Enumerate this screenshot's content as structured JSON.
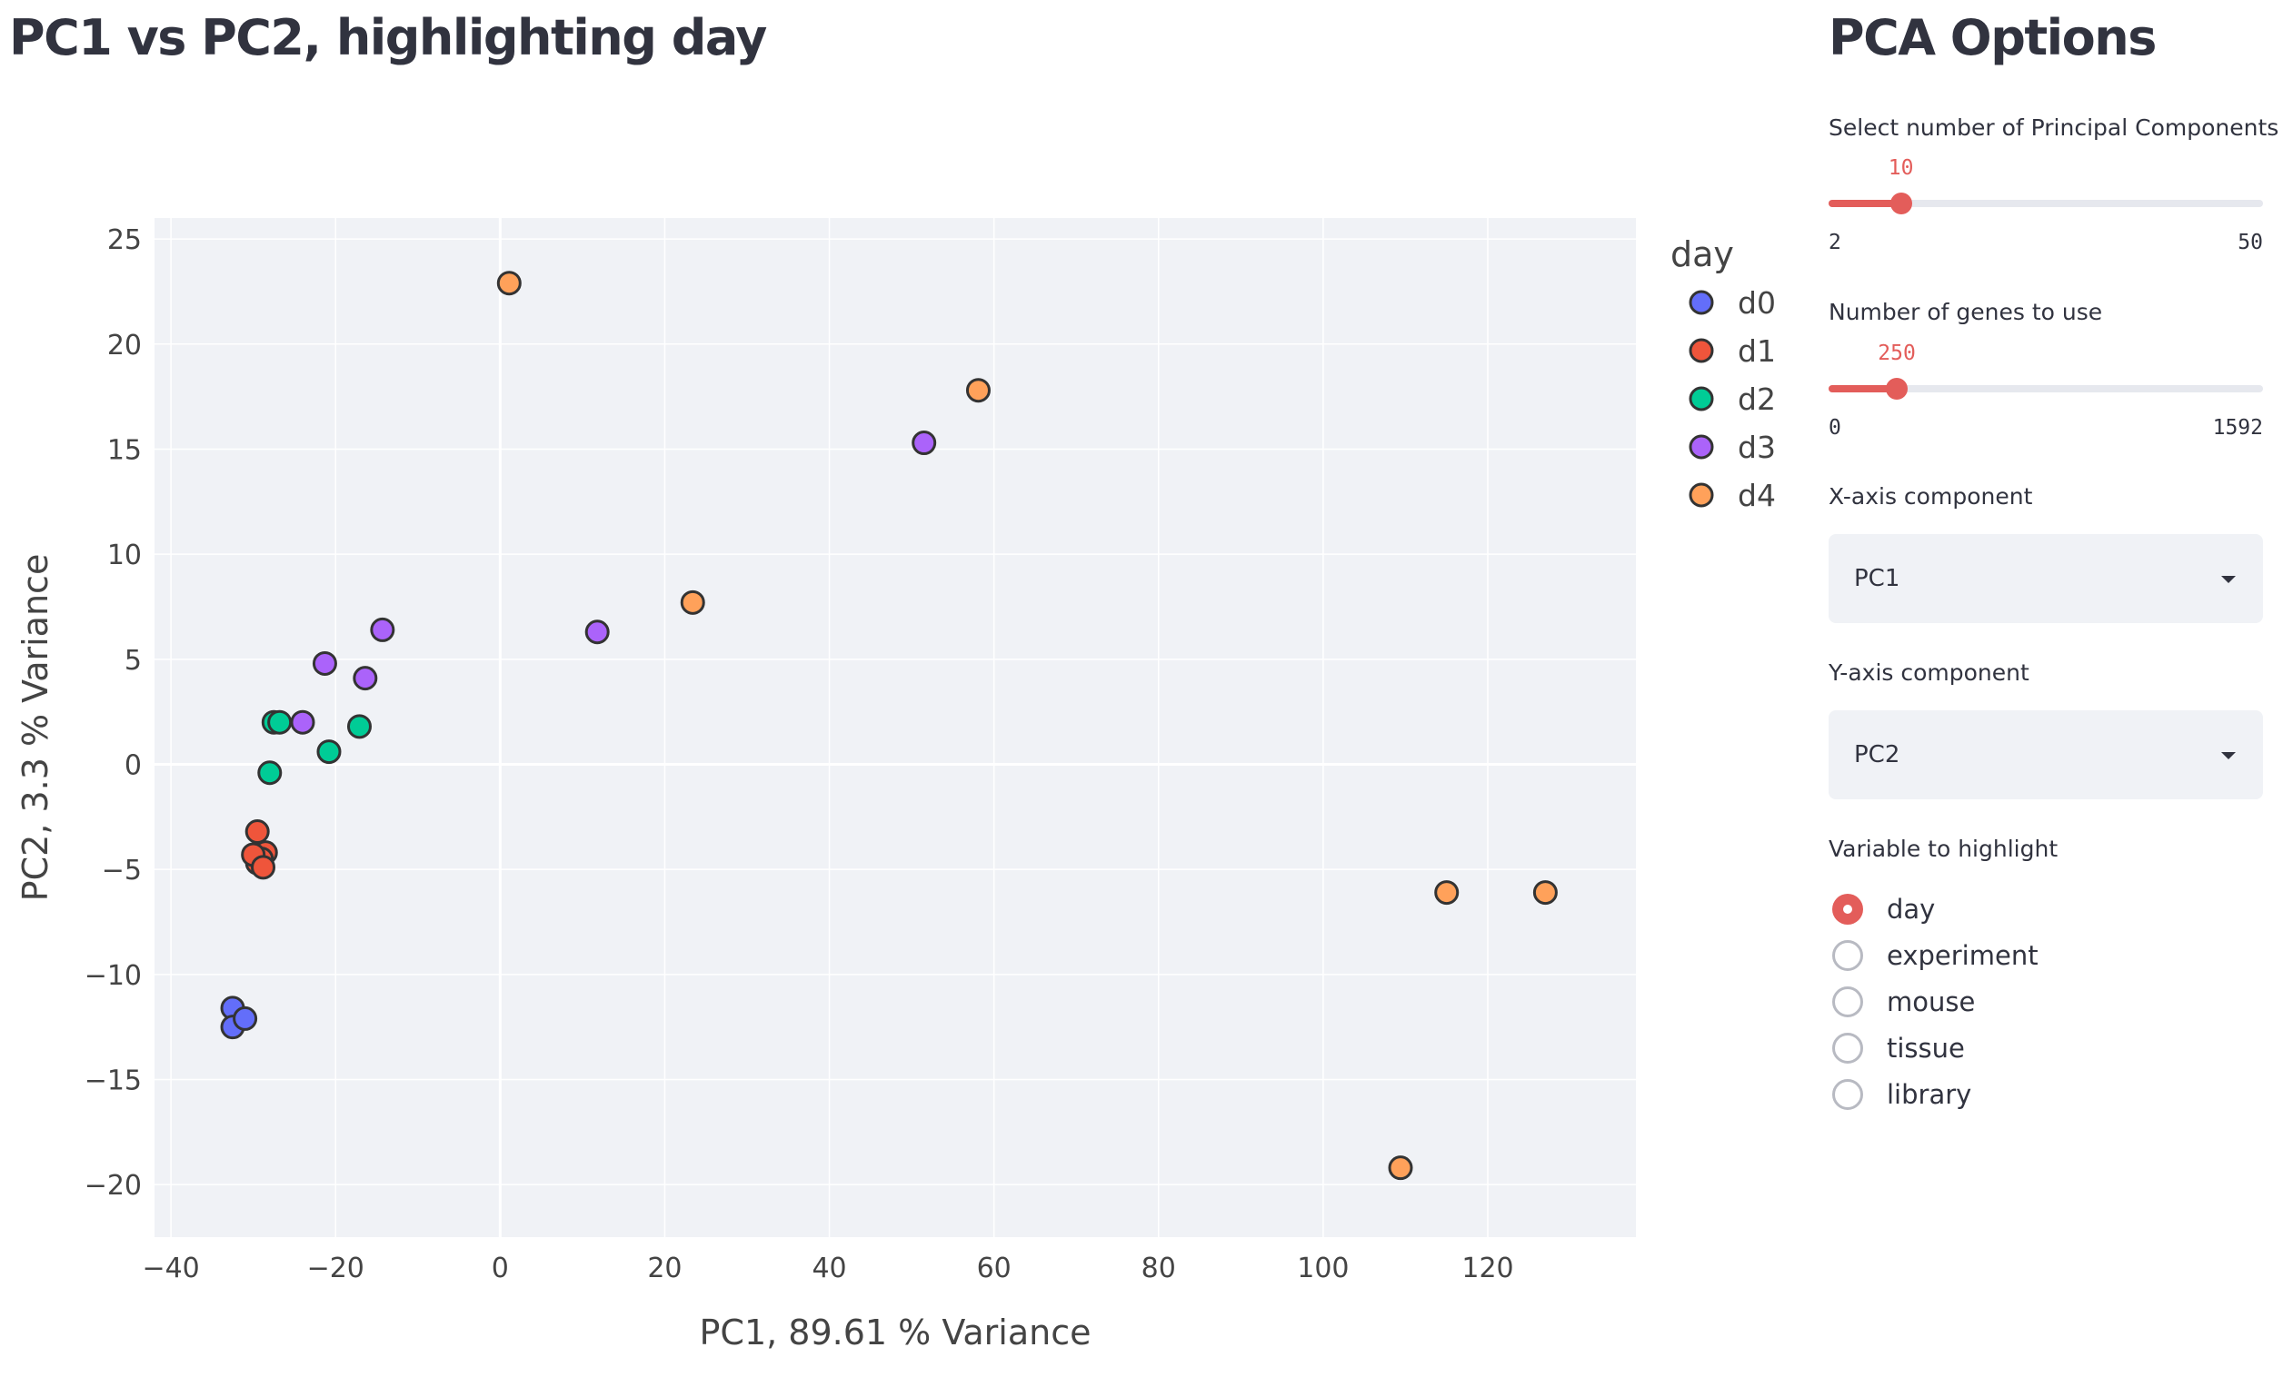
{
  "page": {
    "title": "PC1 vs PC2, highlighting day"
  },
  "sidebar": {
    "title": "PCA Options",
    "pc_slider": {
      "label": "Select number of Principal Components",
      "value": 10,
      "min": 2,
      "max": 50
    },
    "genes_slider": {
      "label": "Number of genes to use",
      "value": 250,
      "min": 0,
      "max": 1592
    },
    "x_select": {
      "label": "X-axis component",
      "value": "PC1"
    },
    "y_select": {
      "label": "Y-axis component",
      "value": "PC2"
    },
    "highlight": {
      "label": "Variable to highlight",
      "options": [
        "day",
        "experiment",
        "mouse",
        "tissue",
        "library"
      ],
      "selected": "day"
    },
    "accent_color": "#e35d5a"
  },
  "chart_data": {
    "type": "scatter",
    "xlabel": "PC1, 89.61 % Variance",
    "ylabel": "PC2, 3.3 % Variance",
    "xlim": [
      -42,
      138
    ],
    "ylim": [
      -22.5,
      26
    ],
    "xticks": [
      -40,
      -20,
      0,
      20,
      40,
      60,
      80,
      100,
      120
    ],
    "yticks": [
      -20,
      -15,
      -10,
      -5,
      0,
      5,
      10,
      15,
      20,
      25
    ],
    "grid": true,
    "legend": {
      "title": "day",
      "placement": "right"
    },
    "series": [
      {
        "name": "d0",
        "color": "#636efa",
        "x": [
          -32.5,
          -32.5,
          -31
        ],
        "y": [
          -11.6,
          -12.5,
          -12.1
        ]
      },
      {
        "name": "d1",
        "color": "#ef553b",
        "x": [
          -29.5,
          -29.5,
          -28.5,
          -29,
          -30,
          -28.8
        ],
        "y": [
          -3.2,
          -4.7,
          -4.2,
          -4.5,
          -4.3,
          -4.9
        ]
      },
      {
        "name": "d2",
        "color": "#00cc96",
        "x": [
          -27.5,
          -26.8,
          -28,
          -20.8,
          -17.1
        ],
        "y": [
          2.0,
          2.0,
          -0.4,
          0.6,
          1.8
        ]
      },
      {
        "name": "d3",
        "color": "#ab63fa",
        "x": [
          -21.3,
          -14.3,
          -16.4,
          -24,
          11.8,
          51.5
        ],
        "y": [
          4.8,
          6.4,
          4.1,
          2.0,
          6.3,
          15.3
        ]
      },
      {
        "name": "d4",
        "color": "#ffa15a",
        "x": [
          1.1,
          58.1,
          23.4,
          115,
          127,
          109.4
        ],
        "y": [
          22.9,
          17.8,
          7.7,
          -6.1,
          -6.1,
          -19.2
        ]
      }
    ]
  }
}
